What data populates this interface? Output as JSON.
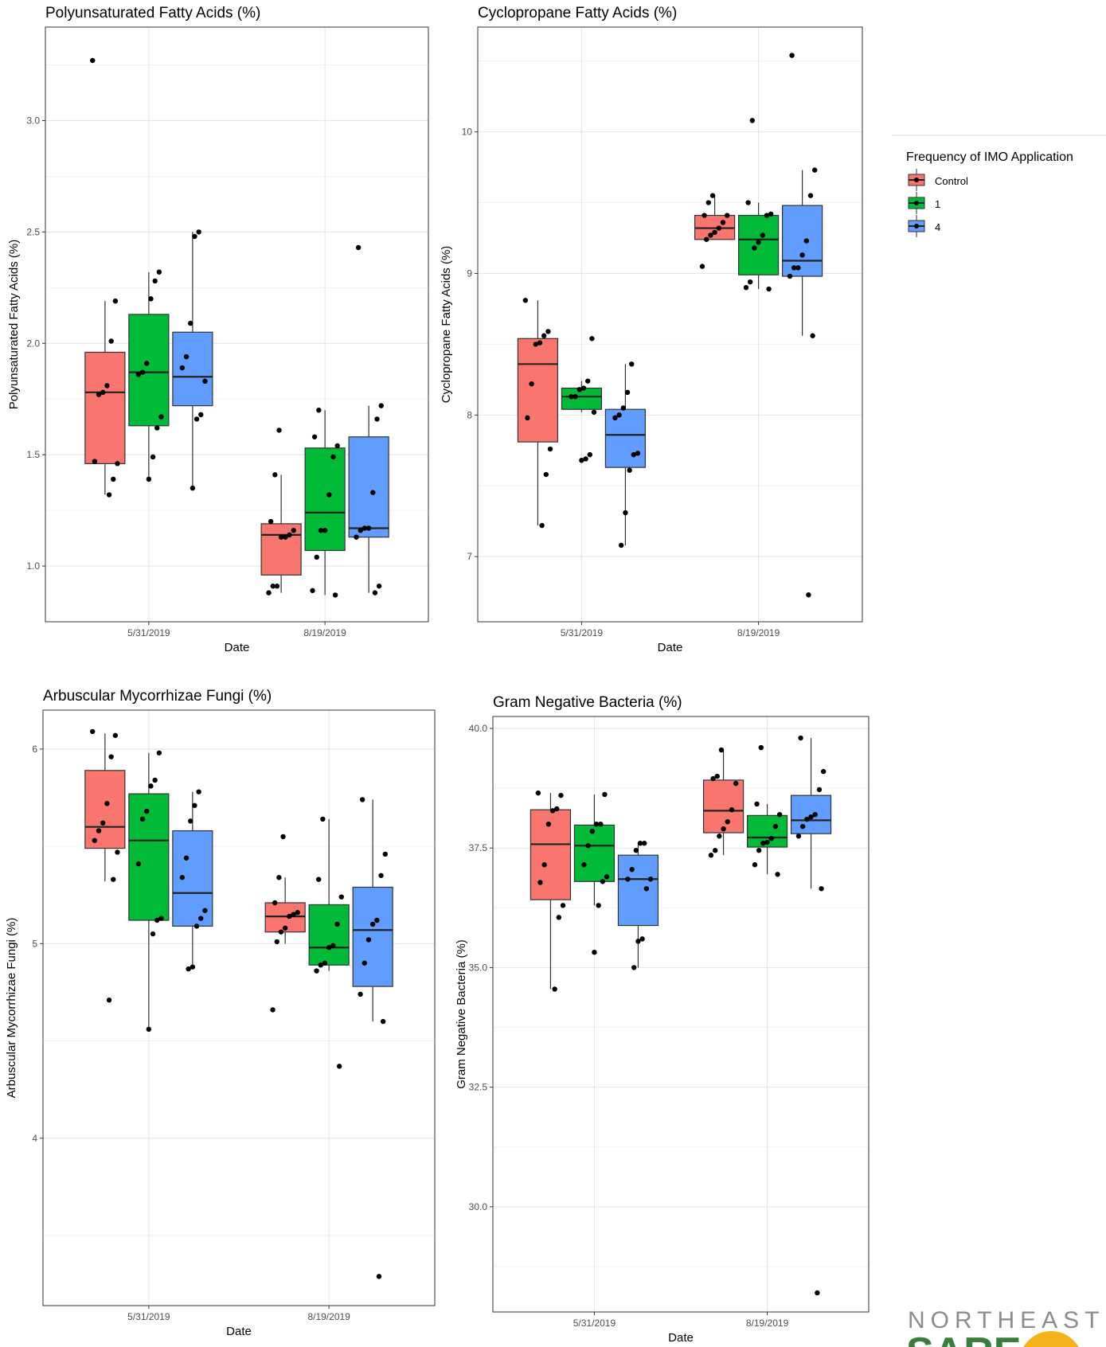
{
  "chart_data": [
    {
      "type": "box",
      "title": "Polyunsaturated Fatty Acids (%)",
      "xlabel": "Date",
      "ylabel": "Polyunsaturated Fatty Acids (%)",
      "categories": [
        "5/31/2019",
        "8/19/2019"
      ],
      "yticks": [
        "1.0",
        "1.5",
        "2.0",
        "2.5",
        "3.0"
      ],
      "ylim": [
        0.75,
        3.42
      ],
      "series": [
        {
          "name": "Control",
          "boxes": [
            {
              "lower": 1.32,
              "q1": 1.46,
              "median": 1.78,
              "q3": 1.96,
              "upper": 2.19,
              "points": [
                3.27,
                2.19,
                2.01,
                1.81,
                1.78,
                1.77,
                1.47,
                1.46,
                1.39,
                1.32
              ]
            },
            {
              "lower": 0.88,
              "q1": 0.96,
              "median": 1.14,
              "q3": 1.19,
              "upper": 1.41,
              "points": [
                1.61,
                1.41,
                1.2,
                1.16,
                1.14,
                1.13,
                1.13,
                0.91,
                0.91,
                0.88
              ]
            }
          ]
        },
        {
          "name": "1",
          "boxes": [
            {
              "lower": 1.39,
              "q1": 1.63,
              "median": 1.87,
              "q3": 2.13,
              "upper": 2.32,
              "points": [
                2.32,
                2.28,
                2.2,
                1.91,
                1.87,
                1.86,
                1.67,
                1.62,
                1.49,
                1.39
              ]
            },
            {
              "lower": 0.87,
              "q1": 1.07,
              "median": 1.24,
              "q3": 1.53,
              "upper": 1.7,
              "points": [
                1.7,
                1.58,
                1.54,
                1.49,
                1.32,
                1.16,
                1.16,
                1.04,
                0.89,
                0.87
              ]
            }
          ]
        },
        {
          "name": "4",
          "boxes": [
            {
              "lower": 1.35,
              "q1": 1.72,
              "median": 1.85,
              "q3": 2.05,
              "upper": 2.5,
              "points": [
                2.5,
                2.48,
                2.09,
                1.94,
                1.89,
                1.83,
                1.68,
                1.66,
                1.35
              ]
            },
            {
              "lower": 0.88,
              "q1": 1.13,
              "median": 1.17,
              "q3": 1.58,
              "upper": 1.72,
              "points": [
                2.43,
                1.72,
                1.66,
                1.33,
                1.17,
                1.17,
                1.16,
                1.13,
                0.91,
                0.88
              ]
            }
          ]
        }
      ]
    },
    {
      "type": "box",
      "title": "Cyclopropane Fatty Acids (%)",
      "xlabel": "Date",
      "ylabel": "Cyclopropane Fatty Acids (%)",
      "categories": [
        "5/31/2019",
        "8/19/2019"
      ],
      "yticks": [
        "7",
        "8",
        "9",
        "10"
      ],
      "ylim": [
        6.54,
        10.74
      ],
      "series": [
        {
          "name": "Control",
          "boxes": [
            {
              "lower": 7.22,
              "q1": 7.81,
              "median": 8.36,
              "q3": 8.54,
              "upper": 8.81,
              "points": [
                8.81,
                8.59,
                8.56,
                8.51,
                8.5,
                8.22,
                7.98,
                7.76,
                7.58,
                7.22
              ]
            },
            {
              "lower": 9.24,
              "q1": 9.24,
              "median": 9.32,
              "q3": 9.41,
              "upper": 9.55,
              "points": [
                9.55,
                9.5,
                9.41,
                9.41,
                9.36,
                9.32,
                9.29,
                9.27,
                9.24,
                9.05
              ]
            }
          ]
        },
        {
          "name": "1",
          "boxes": [
            {
              "lower": 8.02,
              "q1": 8.04,
              "median": 8.13,
              "q3": 8.19,
              "upper": 8.24,
              "points": [
                8.54,
                8.24,
                8.19,
                8.18,
                8.13,
                8.13,
                8.02,
                7.72,
                7.69,
                7.68
              ]
            },
            {
              "lower": 8.89,
              "q1": 8.99,
              "median": 9.24,
              "q3": 9.41,
              "upper": 9.5,
              "points": [
                10.08,
                9.5,
                9.42,
                9.41,
                9.27,
                9.22,
                9.18,
                8.94,
                8.9,
                8.89
              ]
            }
          ]
        },
        {
          "name": "4",
          "boxes": [
            {
              "lower": 7.08,
              "q1": 7.63,
              "median": 7.86,
              "q3": 8.04,
              "upper": 8.36,
              "points": [
                8.36,
                8.16,
                8.05,
                8.0,
                7.98,
                7.73,
                7.72,
                7.61,
                7.31,
                7.08
              ]
            },
            {
              "lower": 8.56,
              "q1": 8.98,
              "median": 9.09,
              "q3": 9.48,
              "upper": 9.73,
              "points": [
                10.54,
                9.73,
                9.55,
                9.23,
                9.13,
                9.04,
                9.04,
                8.98,
                8.56,
                6.73
              ]
            }
          ]
        }
      ]
    },
    {
      "type": "box",
      "title": "Arbuscular Mycorrhizae Fungi (%)",
      "xlabel": "Date",
      "ylabel": "Arbuscular Mycorrhizae Fungi (%)",
      "categories": [
        "5/31/2019",
        "8/19/2019"
      ],
      "yticks": [
        "4",
        "5",
        "6"
      ],
      "ylim": [
        3.14,
        6.2
      ],
      "series": [
        {
          "name": "Control",
          "boxes": [
            {
              "lower": 5.32,
              "q1": 5.49,
              "median": 5.6,
              "q3": 5.89,
              "upper": 6.08,
              "points": [
                6.09,
                6.07,
                5.96,
                5.72,
                5.62,
                5.58,
                5.53,
                5.47,
                5.33,
                4.71
              ]
            },
            {
              "lower": 5.0,
              "q1": 5.06,
              "median": 5.14,
              "q3": 5.21,
              "upper": 5.34,
              "points": [
                5.55,
                5.34,
                5.21,
                5.16,
                5.15,
                5.14,
                5.08,
                5.06,
                5.01,
                4.66
              ]
            }
          ]
        },
        {
          "name": "1",
          "boxes": [
            {
              "lower": 4.56,
              "q1": 5.12,
              "median": 5.53,
              "q3": 5.77,
              "upper": 5.98,
              "points": [
                5.98,
                5.84,
                5.81,
                5.68,
                5.64,
                5.41,
                5.13,
                5.12,
                5.05,
                4.56
              ]
            },
            {
              "lower": 4.86,
              "q1": 4.89,
              "median": 4.98,
              "q3": 5.2,
              "upper": 5.64,
              "points": [
                5.64,
                5.33,
                5.24,
                5.1,
                4.99,
                4.98,
                4.9,
                4.89,
                4.86,
                4.37
              ]
            }
          ]
        },
        {
          "name": "4",
          "boxes": [
            {
              "lower": 4.87,
              "q1": 5.09,
              "median": 5.26,
              "q3": 5.58,
              "upper": 5.78,
              "points": [
                5.78,
                5.71,
                5.63,
                5.44,
                5.34,
                5.17,
                5.13,
                5.09,
                4.88,
                4.87
              ]
            },
            {
              "lower": 4.6,
              "q1": 4.78,
              "median": 5.07,
              "q3": 5.29,
              "upper": 5.74,
              "points": [
                5.74,
                5.46,
                5.35,
                5.12,
                5.1,
                5.02,
                4.9,
                4.74,
                4.6,
                3.29
              ]
            }
          ]
        }
      ]
    },
    {
      "type": "box",
      "title": "Gram Negative Bacteria (%)",
      "xlabel": "Date",
      "ylabel": "Gram Negative Bacteria (%)",
      "categories": [
        "5/31/2019",
        "8/19/2019"
      ],
      "yticks": [
        "30.0",
        "32.5",
        "35.0",
        "37.5",
        "40.0"
      ],
      "ylim": [
        27.8,
        40.25
      ],
      "series": [
        {
          "name": "Control",
          "boxes": [
            {
              "lower": 34.55,
              "q1": 36.42,
              "median": 37.58,
              "q3": 38.3,
              "upper": 38.65,
              "points": [
                38.65,
                38.6,
                38.32,
                38.28,
                38.0,
                37.15,
                36.78,
                36.3,
                36.05,
                34.55
              ]
            },
            {
              "lower": 37.35,
              "q1": 37.82,
              "median": 38.28,
              "q3": 38.92,
              "upper": 39.55,
              "points": [
                39.55,
                39.0,
                38.95,
                38.85,
                38.3,
                38.05,
                37.9,
                37.75,
                37.45,
                37.35
              ]
            }
          ]
        },
        {
          "name": "1",
          "boxes": [
            {
              "lower": 36.3,
              "q1": 36.8,
              "median": 37.55,
              "q3": 37.98,
              "upper": 38.62,
              "points": [
                38.62,
                38.0,
                38.0,
                37.85,
                37.55,
                37.15,
                36.9,
                36.8,
                36.3,
                35.32
              ]
            },
            {
              "lower": 36.95,
              "q1": 37.52,
              "median": 37.72,
              "q3": 38.18,
              "upper": 38.42,
              "points": [
                39.6,
                38.42,
                38.2,
                37.95,
                37.7,
                37.62,
                37.6,
                37.45,
                37.15,
                36.95
              ]
            }
          ]
        },
        {
          "name": "4",
          "boxes": [
            {
              "lower": 35.0,
              "q1": 35.88,
              "median": 36.85,
              "q3": 37.35,
              "upper": 37.6,
              "points": [
                37.6,
                37.6,
                37.45,
                37.05,
                36.85,
                36.85,
                36.65,
                35.6,
                35.55,
                35.0
              ]
            },
            {
              "lower": 36.65,
              "q1": 37.8,
              "median": 38.08,
              "q3": 38.6,
              "upper": 39.8,
              "points": [
                39.8,
                39.1,
                38.72,
                38.2,
                38.15,
                38.1,
                37.95,
                37.75,
                36.65,
                28.2
              ]
            }
          ]
        }
      ]
    }
  ],
  "legend": {
    "title": "Frequency of IMO Application",
    "items": [
      {
        "label": "Control",
        "color": "#F8766D"
      },
      {
        "label": "1",
        "color": "#00BA38"
      },
      {
        "label": "4",
        "color": "#619CFF"
      }
    ]
  },
  "logo": {
    "line1": "NORTHEAST",
    "line2": "SARE"
  }
}
